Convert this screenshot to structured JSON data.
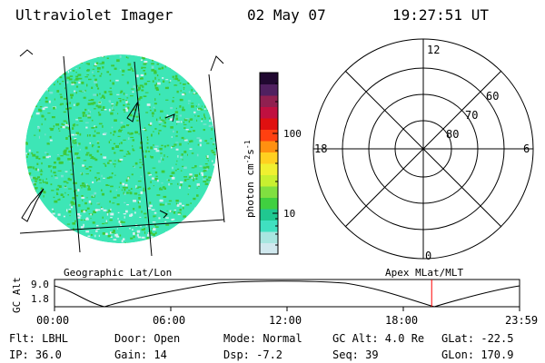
{
  "header": {
    "title": "Ultraviolet Imager",
    "date": "02 May 07",
    "time": "19:27:51 UT"
  },
  "colors": {
    "accent_marker": "#ff0000",
    "image_cyan": "#3de6b6",
    "image_green": "#3ec93a",
    "image_pale": "#d8eef0"
  },
  "colorbar": {
    "unit_label": "photon cm",
    "unit_exp1": "-2",
    "unit_s": "s",
    "unit_exp2": "-1",
    "tick_100": "100",
    "tick_10": "10",
    "stops": [
      "#d0e8ee",
      "#a8e6e0",
      "#40e0c0",
      "#20c890",
      "#40d040",
      "#80e040",
      "#c8f030",
      "#f0f030",
      "#ffd020",
      "#ff9010",
      "#ff4010",
      "#e01010",
      "#c01040",
      "#902050",
      "#502060",
      "#200830"
    ]
  },
  "polar": {
    "label_12": "12",
    "label_18": "18",
    "label_6": "6",
    "label_0": "0",
    "label_60": "60",
    "label_70": "70",
    "label_80": "80"
  },
  "strip": {
    "label_left": "Geographic Lat/Lon",
    "label_right": "Apex MLat/MLT",
    "axis_title": "GC Alt",
    "y_top": "9.0",
    "y_bottom": "1.8",
    "x_ticks": [
      "00:00",
      "06:00",
      "12:00",
      "18:00",
      "23:59"
    ],
    "marker_fraction": 0.811
  },
  "info": {
    "flt": "Flt: LBHL",
    "ip": "IP: 36.0",
    "door": "Door: Open",
    "gain": "Gain: 14",
    "mode": "Mode: Normal",
    "dsp": "Dsp:   -7.2",
    "gcalt": "GC Alt: 4.0 Re",
    "seq": "Seq: 39",
    "glat": "GLat: -22.5",
    "glon": "GLon: 170.9"
  }
}
